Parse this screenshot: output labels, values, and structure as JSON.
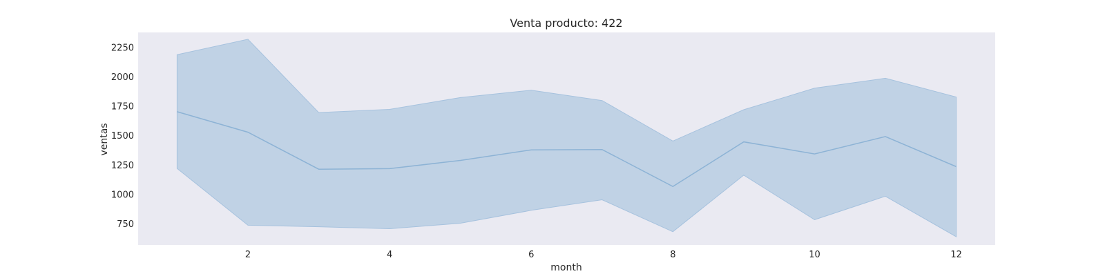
{
  "chart_data": {
    "type": "line",
    "title": "Venta producto: 422",
    "xlabel": "month",
    "ylabel": "ventas",
    "xlim": [
      0.45,
      12.55
    ],
    "ylim": [
      570,
      2380
    ],
    "xticks": [
      2,
      4,
      6,
      8,
      10,
      12
    ],
    "yticks": [
      750,
      1000,
      1250,
      1500,
      1750,
      2000,
      2250
    ],
    "grid": false,
    "series": [
      {
        "x": [
          1,
          2,
          3,
          4,
          5,
          6,
          7,
          8,
          9,
          10,
          11,
          12
        ],
        "values": [
          1705,
          1530,
          1215,
          1220,
          1290,
          1380,
          1383,
          1068,
          1448,
          1345,
          1493,
          1237
        ],
        "band_upper": [
          2190,
          2322,
          1698,
          1725,
          1825,
          1888,
          1800,
          1455,
          1722,
          1905,
          1990,
          1830
        ],
        "band_lower": [
          1222,
          738,
          725,
          708,
          755,
          865,
          955,
          683,
          1165,
          785,
          985,
          640
        ]
      }
    ],
    "colors": {
      "plot_bg": "#eaeaf2",
      "line": "#8db3d5",
      "band": "#c0d2e5",
      "band_edge": "#a6c2de"
    }
  }
}
